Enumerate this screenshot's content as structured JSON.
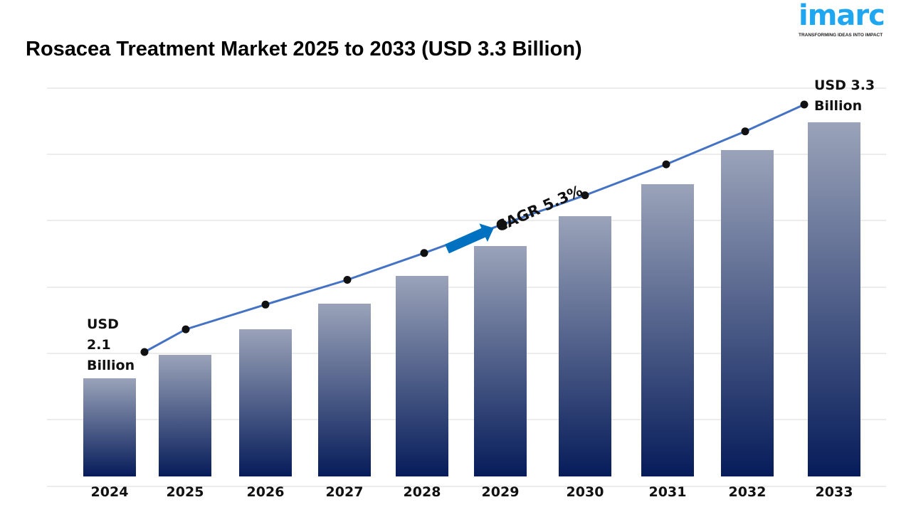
{
  "title": "Rosacea Treatment Market 2025 to 2033 (USD 3.3 Billion)",
  "logo": {
    "word": "imarc",
    "tagline": "TRANSFORMING IDEAS INTO IMPACT",
    "color": "#1ea7f0"
  },
  "chart_data": {
    "type": "bar",
    "title": "Rosacea Treatment Market 2025 to 2033 (USD 3.3 Billion)",
    "categories": [
      "2024",
      "2025",
      "2026",
      "2027",
      "2028",
      "2029",
      "2030",
      "2031",
      "2032",
      "2033"
    ],
    "values": [
      2.1,
      2.21,
      2.33,
      2.45,
      2.58,
      2.72,
      2.86,
      3.01,
      3.17,
      3.3
    ],
    "unit": "USD Billion",
    "overlay_line": {
      "type": "line",
      "values": [
        2.1,
        2.21,
        2.33,
        2.45,
        2.58,
        2.72,
        2.86,
        3.01,
        3.17,
        3.3
      ],
      "color": "#4472c4",
      "markers": "black-dots"
    },
    "annotations": {
      "start_label": [
        "USD",
        "2.1",
        "Billion"
      ],
      "end_label": [
        "USD 3.3",
        "Billion"
      ],
      "cagr": "CAGR 5.3%"
    },
    "colors": {
      "bar_top": "#9aa3b9",
      "bar_bottom": "#061c5a",
      "arrow": "#0070c0",
      "grid": "#d9d9d9"
    },
    "grid": true,
    "y_axis_labels": false,
    "xlabel": "",
    "ylabel": ""
  }
}
